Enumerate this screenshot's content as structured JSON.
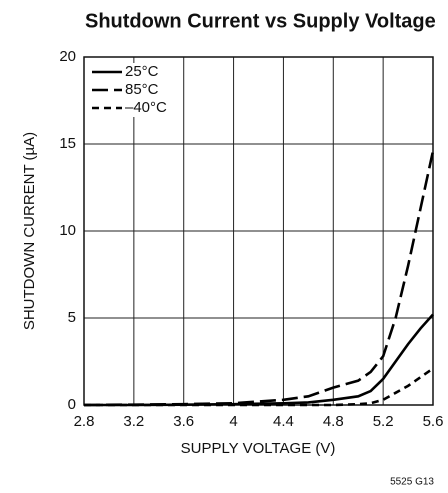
{
  "chart_data": {
    "type": "line",
    "title": "Shutdown Current vs Supply Voltage",
    "x_label": "SUPPLY VOLTAGE (V)",
    "y_label": "SHUTDOWN CURRENT (µA)",
    "note": "5525 G13",
    "x": [
      2.8,
      3.2,
      3.6,
      4.0,
      4.4,
      4.6,
      4.8,
      5.0,
      5.1,
      5.2,
      5.3,
      5.4,
      5.5,
      5.6
    ],
    "series": [
      {
        "name": "25°C",
        "color": "#000000",
        "dash": "solid",
        "values": [
          0,
          0,
          0.02,
          0.05,
          0.1,
          0.15,
          0.3,
          0.5,
          0.8,
          1.5,
          2.5,
          3.5,
          4.4,
          5.2
        ]
      },
      {
        "name": "85°C",
        "color": "#000000",
        "dash": "long",
        "values": [
          0,
          0.02,
          0.05,
          0.1,
          0.3,
          0.5,
          1.0,
          1.4,
          1.9,
          2.8,
          5.0,
          8.0,
          11.3,
          14.6
        ]
      },
      {
        "name": "–40°C",
        "color": "#000000",
        "dash": "short",
        "values": [
          0,
          0,
          0,
          0,
          0,
          0,
          0,
          0.05,
          0.1,
          0.3,
          0.7,
          1.1,
          1.6,
          2.1
        ]
      }
    ],
    "xlim": [
      2.8,
      5.6
    ],
    "xticks": [
      2.8,
      3.2,
      3.6,
      4,
      4.4,
      4.8,
      5.2,
      5.6
    ],
    "ylim": [
      0,
      20
    ],
    "yticks": [
      0,
      5,
      10,
      15,
      20
    ],
    "grid": true,
    "legend": "upper left"
  }
}
